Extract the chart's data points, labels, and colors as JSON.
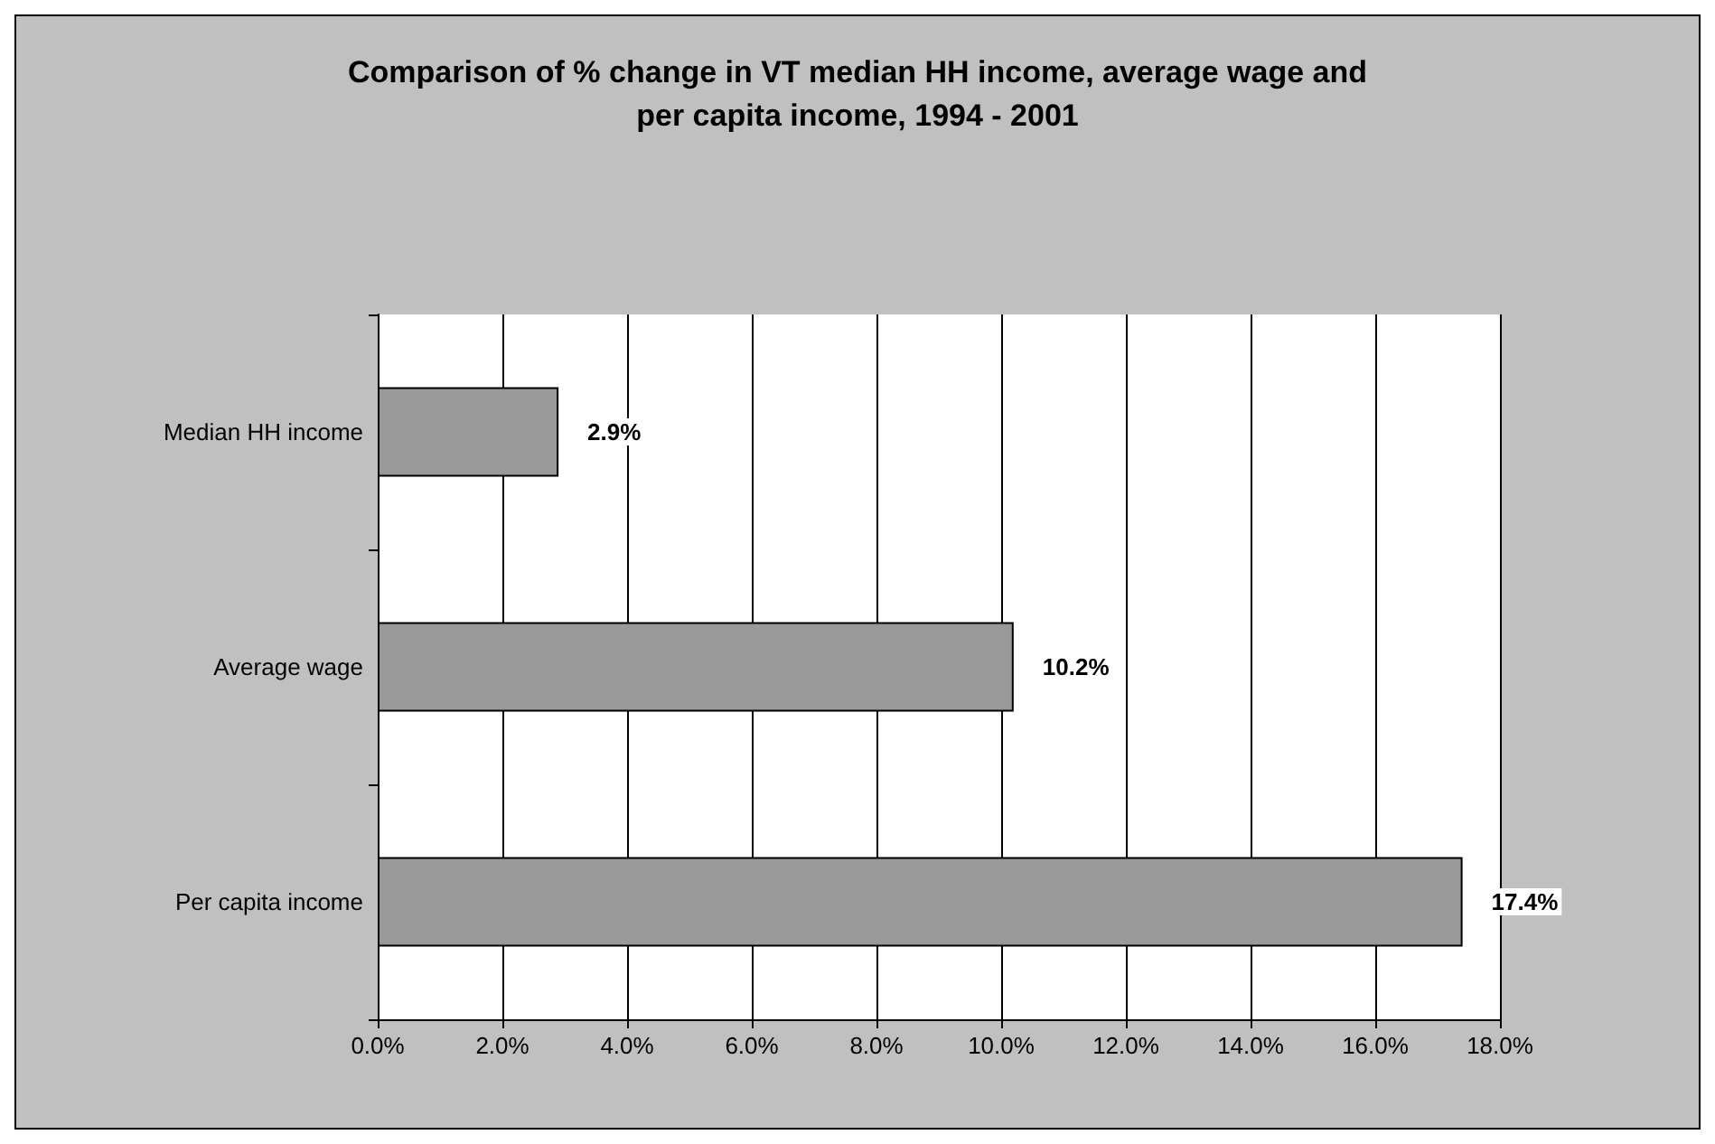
{
  "chart_data": {
    "type": "bar",
    "orientation": "horizontal",
    "title": "Comparison of % change in VT median HH income, average wage and\nper capita income, 1994 - 2001",
    "categories": [
      "Median HH income",
      "Average wage",
      "Per capita income"
    ],
    "values": [
      2.9,
      10.2,
      17.4
    ],
    "color": "#999999",
    "value_labels": [
      "2.9%",
      "10.2%",
      "17.4%"
    ],
    "xlim": [
      0,
      18
    ],
    "xticks": [
      {
        "value": 0,
        "label": "0.0%"
      },
      {
        "value": 2,
        "label": "2.0%"
      },
      {
        "value": 4,
        "label": "4.0%"
      },
      {
        "value": 6,
        "label": "6.0%"
      },
      {
        "value": 8,
        "label": "8.0%"
      },
      {
        "value": 10,
        "label": "10.0%"
      },
      {
        "value": 12,
        "label": "12.0%"
      },
      {
        "value": 14,
        "label": "14.0%"
      },
      {
        "value": 16,
        "label": "16.0%"
      },
      {
        "value": 18,
        "label": "18.0%"
      }
    ],
    "grid": "x"
  }
}
